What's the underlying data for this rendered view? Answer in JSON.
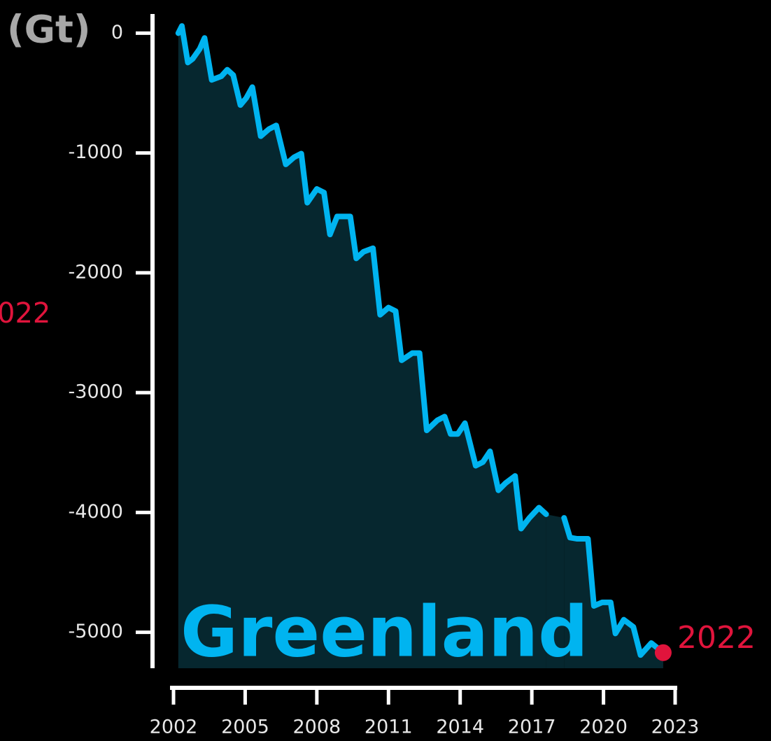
{
  "chart_data": {
    "type": "area",
    "unit_label": "(Gt)",
    "side_label": "022",
    "end_label": "2022",
    "x": [
      2002.2,
      2002.35,
      2002.6,
      2002.8,
      2003.1,
      2003.3,
      2003.6,
      2004.0,
      2004.25,
      2004.5,
      2004.8,
      2005.05,
      2005.3,
      2005.65,
      2006.0,
      2006.3,
      2006.7,
      2007.05,
      2007.35,
      2007.6,
      2008.0,
      2008.3,
      2008.55,
      2008.85,
      2009.4,
      2009.65,
      2009.95,
      2010.35,
      2010.65,
      2011.0,
      2011.3,
      2011.55,
      2012.0,
      2012.3,
      2012.6,
      2013.05,
      2013.35,
      2013.6,
      2013.9,
      2014.2,
      2014.65,
      2014.95,
      2015.25,
      2015.6,
      2015.9,
      2016.3,
      2016.55,
      2016.9,
      2017.3,
      2017.6,
      2018.0,
      2018.35,
      2018.6,
      2018.9,
      2019.35,
      2019.6,
      2019.95,
      2020.3,
      2020.5,
      2020.85,
      2021.25,
      2021.55,
      2022.0,
      2022.5
    ],
    "series": [
      {
        "name": "Greenland",
        "color": "#00b4f0",
        "area_color": "#06272f",
        "values": [
          0,
          60,
          -245,
          -215,
          -130,
          -40,
          -390,
          -360,
          -305,
          -350,
          -600,
          -540,
          -450,
          -860,
          -800,
          -770,
          -1095,
          -1035,
          -1005,
          -1415,
          -1300,
          -1330,
          -1680,
          -1530,
          -1530,
          -1880,
          -1825,
          -1795,
          -2350,
          -2290,
          -2320,
          -2730,
          -2670,
          -2670,
          -3315,
          -3230,
          -3200,
          -3345,
          -3345,
          -3255,
          -3610,
          -3580,
          -3490,
          -3815,
          -3755,
          -3695,
          -4135,
          -4045,
          -3960,
          -4015,
          null,
          -4045,
          -4210,
          -4220,
          -4220,
          -4780,
          -4750,
          -4750,
          -5010,
          -4895,
          -4955,
          -5190,
          -5090,
          -5170
        ]
      }
    ],
    "marker_color": "#e0143c",
    "xlim": [
      2002,
      2023
    ],
    "ylim": [
      -5300,
      160
    ],
    "xticks": [
      2002,
      2005,
      2008,
      2011,
      2014,
      2017,
      2020,
      2023
    ],
    "yticks": [
      0,
      -1000,
      -2000,
      -3000,
      -4000,
      -5000
    ]
  }
}
